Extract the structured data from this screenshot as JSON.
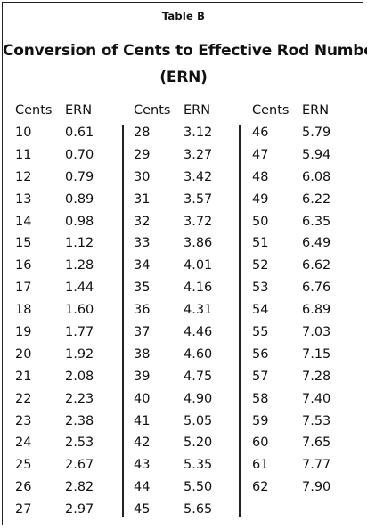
{
  "table_label": "Table B",
  "title_line_1": "Conversion of Cents to Effective Rod Number",
  "title_line_2": "(ERN)",
  "headers": {
    "cents": "Cents",
    "ern": "ERN"
  },
  "columns": [
    {
      "rows": [
        {
          "cents": "10",
          "ern": "0.61"
        },
        {
          "cents": "11",
          "ern": "0.70"
        },
        {
          "cents": "12",
          "ern": "0.79"
        },
        {
          "cents": "13",
          "ern": "0.89"
        },
        {
          "cents": "14",
          "ern": "0.98"
        },
        {
          "cents": "15",
          "ern": "1.12"
        },
        {
          "cents": "16",
          "ern": "1.28"
        },
        {
          "cents": "17",
          "ern": "1.44"
        },
        {
          "cents": "18",
          "ern": "1.60"
        },
        {
          "cents": "19",
          "ern": "1.77"
        },
        {
          "cents": "20",
          "ern": "1.92"
        },
        {
          "cents": "21",
          "ern": "2.08"
        },
        {
          "cents": "22",
          "ern": "2.23"
        },
        {
          "cents": "23",
          "ern": "2.38"
        },
        {
          "cents": "24",
          "ern": "2.53"
        },
        {
          "cents": "25",
          "ern": "2.67"
        },
        {
          "cents": "26",
          "ern": "2.82"
        },
        {
          "cents": "27",
          "ern": "2.97"
        }
      ]
    },
    {
      "rows": [
        {
          "cents": "28",
          "ern": "3.12"
        },
        {
          "cents": "29",
          "ern": "3.27"
        },
        {
          "cents": "30",
          "ern": "3.42"
        },
        {
          "cents": "31",
          "ern": "3.57"
        },
        {
          "cents": "32",
          "ern": "3.72"
        },
        {
          "cents": "33",
          "ern": "3.86"
        },
        {
          "cents": "34",
          "ern": "4.01"
        },
        {
          "cents": "35",
          "ern": "4.16"
        },
        {
          "cents": "36",
          "ern": "4.31"
        },
        {
          "cents": "37",
          "ern": "4.46"
        },
        {
          "cents": "38",
          "ern": "4.60"
        },
        {
          "cents": "39",
          "ern": "4.75"
        },
        {
          "cents": "40",
          "ern": "4.90"
        },
        {
          "cents": "41",
          "ern": "5.05"
        },
        {
          "cents": "42",
          "ern": "5.20"
        },
        {
          "cents": "43",
          "ern": "5.35"
        },
        {
          "cents": "44",
          "ern": "5.50"
        },
        {
          "cents": "45",
          "ern": "5.65"
        }
      ]
    },
    {
      "rows": [
        {
          "cents": "46",
          "ern": "5.79"
        },
        {
          "cents": "47",
          "ern": "5.94"
        },
        {
          "cents": "48",
          "ern": "6.08"
        },
        {
          "cents": "49",
          "ern": "6.22"
        },
        {
          "cents": "50",
          "ern": "6.35"
        },
        {
          "cents": "51",
          "ern": "6.49"
        },
        {
          "cents": "52",
          "ern": "6.62"
        },
        {
          "cents": "53",
          "ern": "6.76"
        },
        {
          "cents": "54",
          "ern": "6.89"
        },
        {
          "cents": "55",
          "ern": "7.03"
        },
        {
          "cents": "56",
          "ern": "7.15"
        },
        {
          "cents": "57",
          "ern": "7.28"
        },
        {
          "cents": "58",
          "ern": "7.40"
        },
        {
          "cents": "59",
          "ern": "7.53"
        },
        {
          "cents": "60",
          "ern": "7.65"
        },
        {
          "cents": "61",
          "ern": "7.77"
        },
        {
          "cents": "62",
          "ern": "7.90"
        }
      ]
    }
  ]
}
